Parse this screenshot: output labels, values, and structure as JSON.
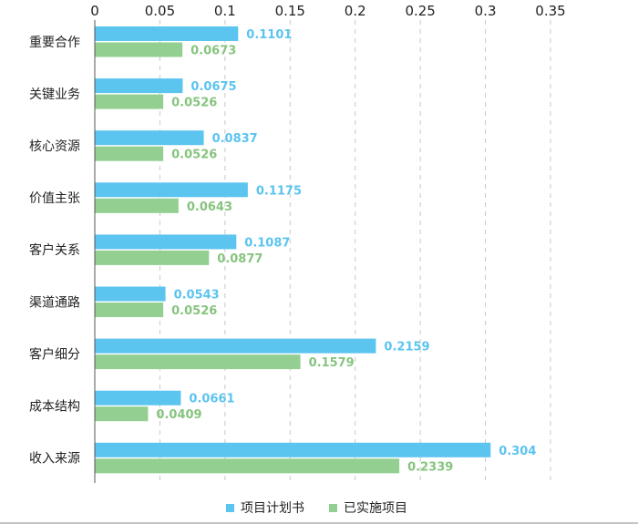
{
  "chart_data": {
    "type": "bar",
    "orientation": "horizontal",
    "categories": [
      "重要合作",
      "关键业务",
      "核心资源",
      "价值主张",
      "客户关系",
      "渠道通路",
      "客户细分",
      "成本结构",
      "收入来源"
    ],
    "series": [
      {
        "name": "项目计划书",
        "color": "#5bc4ef",
        "label_color": "#5bc4ef",
        "values": [
          0.1101,
          0.0675,
          0.0837,
          0.1175,
          0.1087,
          0.0543,
          0.2159,
          0.0661,
          0.304
        ],
        "value_labels": [
          "0.1101",
          "0.0675",
          "0.0837",
          "0.1175",
          "0.1087",
          "0.0543",
          "0.2159",
          "0.0661",
          "0.304"
        ]
      },
      {
        "name": "已实施项目",
        "color": "#93cf91",
        "label_color": "#86c47e",
        "values": [
          0.0673,
          0.0526,
          0.0526,
          0.0643,
          0.0877,
          0.0526,
          0.1579,
          0.0409,
          0.2339
        ],
        "value_labels": [
          "0.0673",
          "0.0526",
          "0.0526",
          "0.0643",
          "0.0877",
          "0.0526",
          "0.1579",
          "0.0409",
          "0.2339"
        ]
      }
    ],
    "x_ticks": [
      0,
      0.05,
      0.1,
      0.15,
      0.2,
      0.25,
      0.3,
      0.35
    ],
    "x_tick_labels": [
      "0",
      "0.05",
      "0.1",
      "0.15",
      "0.2",
      "0.25",
      "0.3",
      "0.35"
    ],
    "xlim": [
      0,
      0.35
    ],
    "x_axis_position": "top",
    "grid": true,
    "legend": "bottom",
    "title": "",
    "xlabel": "",
    "ylabel": ""
  }
}
